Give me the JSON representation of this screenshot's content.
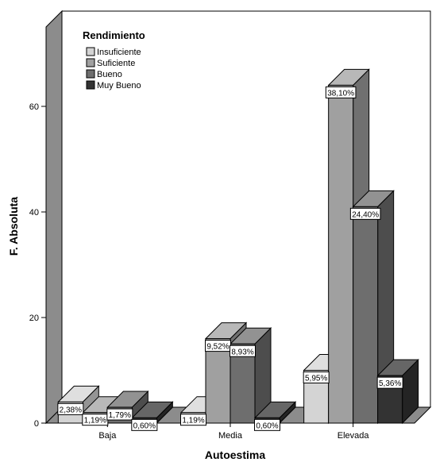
{
  "chart_data": {
    "type": "bar",
    "title": "",
    "xlabel": "Autoestima",
    "ylabel": "F. Absoluta",
    "categories": [
      "Baja",
      "Media",
      "Elevada"
    ],
    "ylim": [
      0,
      75
    ],
    "yticks": [
      0,
      20,
      40,
      60
    ],
    "yticklabels": [
      "0",
      "20",
      "40",
      "60"
    ],
    "grid": false,
    "legend_title": "Rendimiento",
    "legend_position": "top-left",
    "series": [
      {
        "name": "Insuficiente",
        "color": "#d4d4d4",
        "values": [
          4,
          2,
          10
        ],
        "labels": [
          "2,38%",
          "1,19%",
          "5,95%"
        ]
      },
      {
        "name": "Suficiente",
        "color": "#a0a0a0",
        "values": [
          2,
          16,
          64
        ],
        "labels": [
          "1,19%",
          "9,52%",
          "38,10%"
        ]
      },
      {
        "name": "Bueno",
        "color": "#6e6e6e",
        "values": [
          3,
          15,
          41
        ],
        "labels": [
          "1,79%",
          "8,93%",
          "24,40%"
        ]
      },
      {
        "name": "Muy Bueno",
        "color": "#333333",
        "values": [
          1,
          1,
          9
        ],
        "labels": [
          "0,60%",
          "0,60%",
          "5,36%"
        ]
      }
    ]
  }
}
